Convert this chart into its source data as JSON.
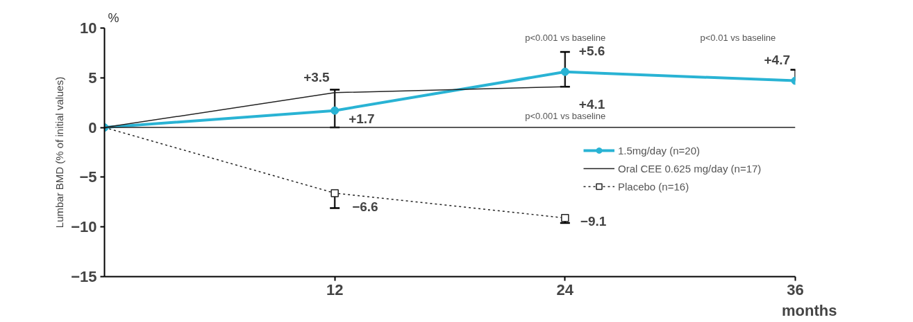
{
  "chart_data": {
    "type": "line",
    "ylabel": "Lumbar BMD (% of initial values)",
    "xlabel": "months",
    "x": [
      0,
      12,
      24,
      36
    ],
    "series": [
      {
        "name": "1.5mg/day (n=20)",
        "color": "#29b3d4",
        "values": [
          0,
          1.7,
          5.6,
          4.7
        ],
        "errors": [
          null,
          null,
          [
            4.1,
            7.6
          ],
          [
            4.7,
            5.8
          ]
        ],
        "value_labels": [
          null,
          "+1.7",
          "+5.6",
          "+4.7"
        ],
        "marker": "circle",
        "line_style": "solid"
      },
      {
        "name": "Oral CEE 0.625 mg/day (n=17)",
        "color": "#222222",
        "values": [
          0,
          3.5,
          4.1,
          null
        ],
        "errors": [
          null,
          [
            0,
            3.8
          ],
          null,
          null
        ],
        "value_labels": [
          null,
          "+3.5",
          "+4.1",
          null
        ],
        "marker": "none",
        "line_style": "solid"
      },
      {
        "name": "Placebo (n=16)",
        "color": "#222222",
        "values": [
          0,
          -6.6,
          -9.1,
          null
        ],
        "errors": [
          null,
          [
            -8.1,
            -6.6
          ],
          [
            -9.6,
            -9.1
          ],
          null
        ],
        "value_labels": [
          null,
          "−6.6",
          "−9.1",
          null
        ],
        "marker": "square",
        "line_style": "dotted"
      }
    ],
    "xlim": [
      0,
      36
    ],
    "xticks": [
      12,
      24,
      36
    ],
    "ylim": [
      -15,
      10
    ],
    "yticks": [
      {
        "value": -15,
        "label": "−15"
      },
      {
        "value": -10,
        "label": "−10"
      },
      {
        "value": -5,
        "label": "−5"
      },
      0,
      5,
      10
    ],
    "ref_lines": [
      {
        "axis": "y",
        "value": 0,
        "label": null,
        "color": "#222222"
      }
    ],
    "annotations": [
      "%",
      "p<0.001 vs baseline",
      "p<0.01 vs baseline",
      "p<0.001 vs baseline"
    ],
    "grid": false,
    "legend": "right"
  }
}
